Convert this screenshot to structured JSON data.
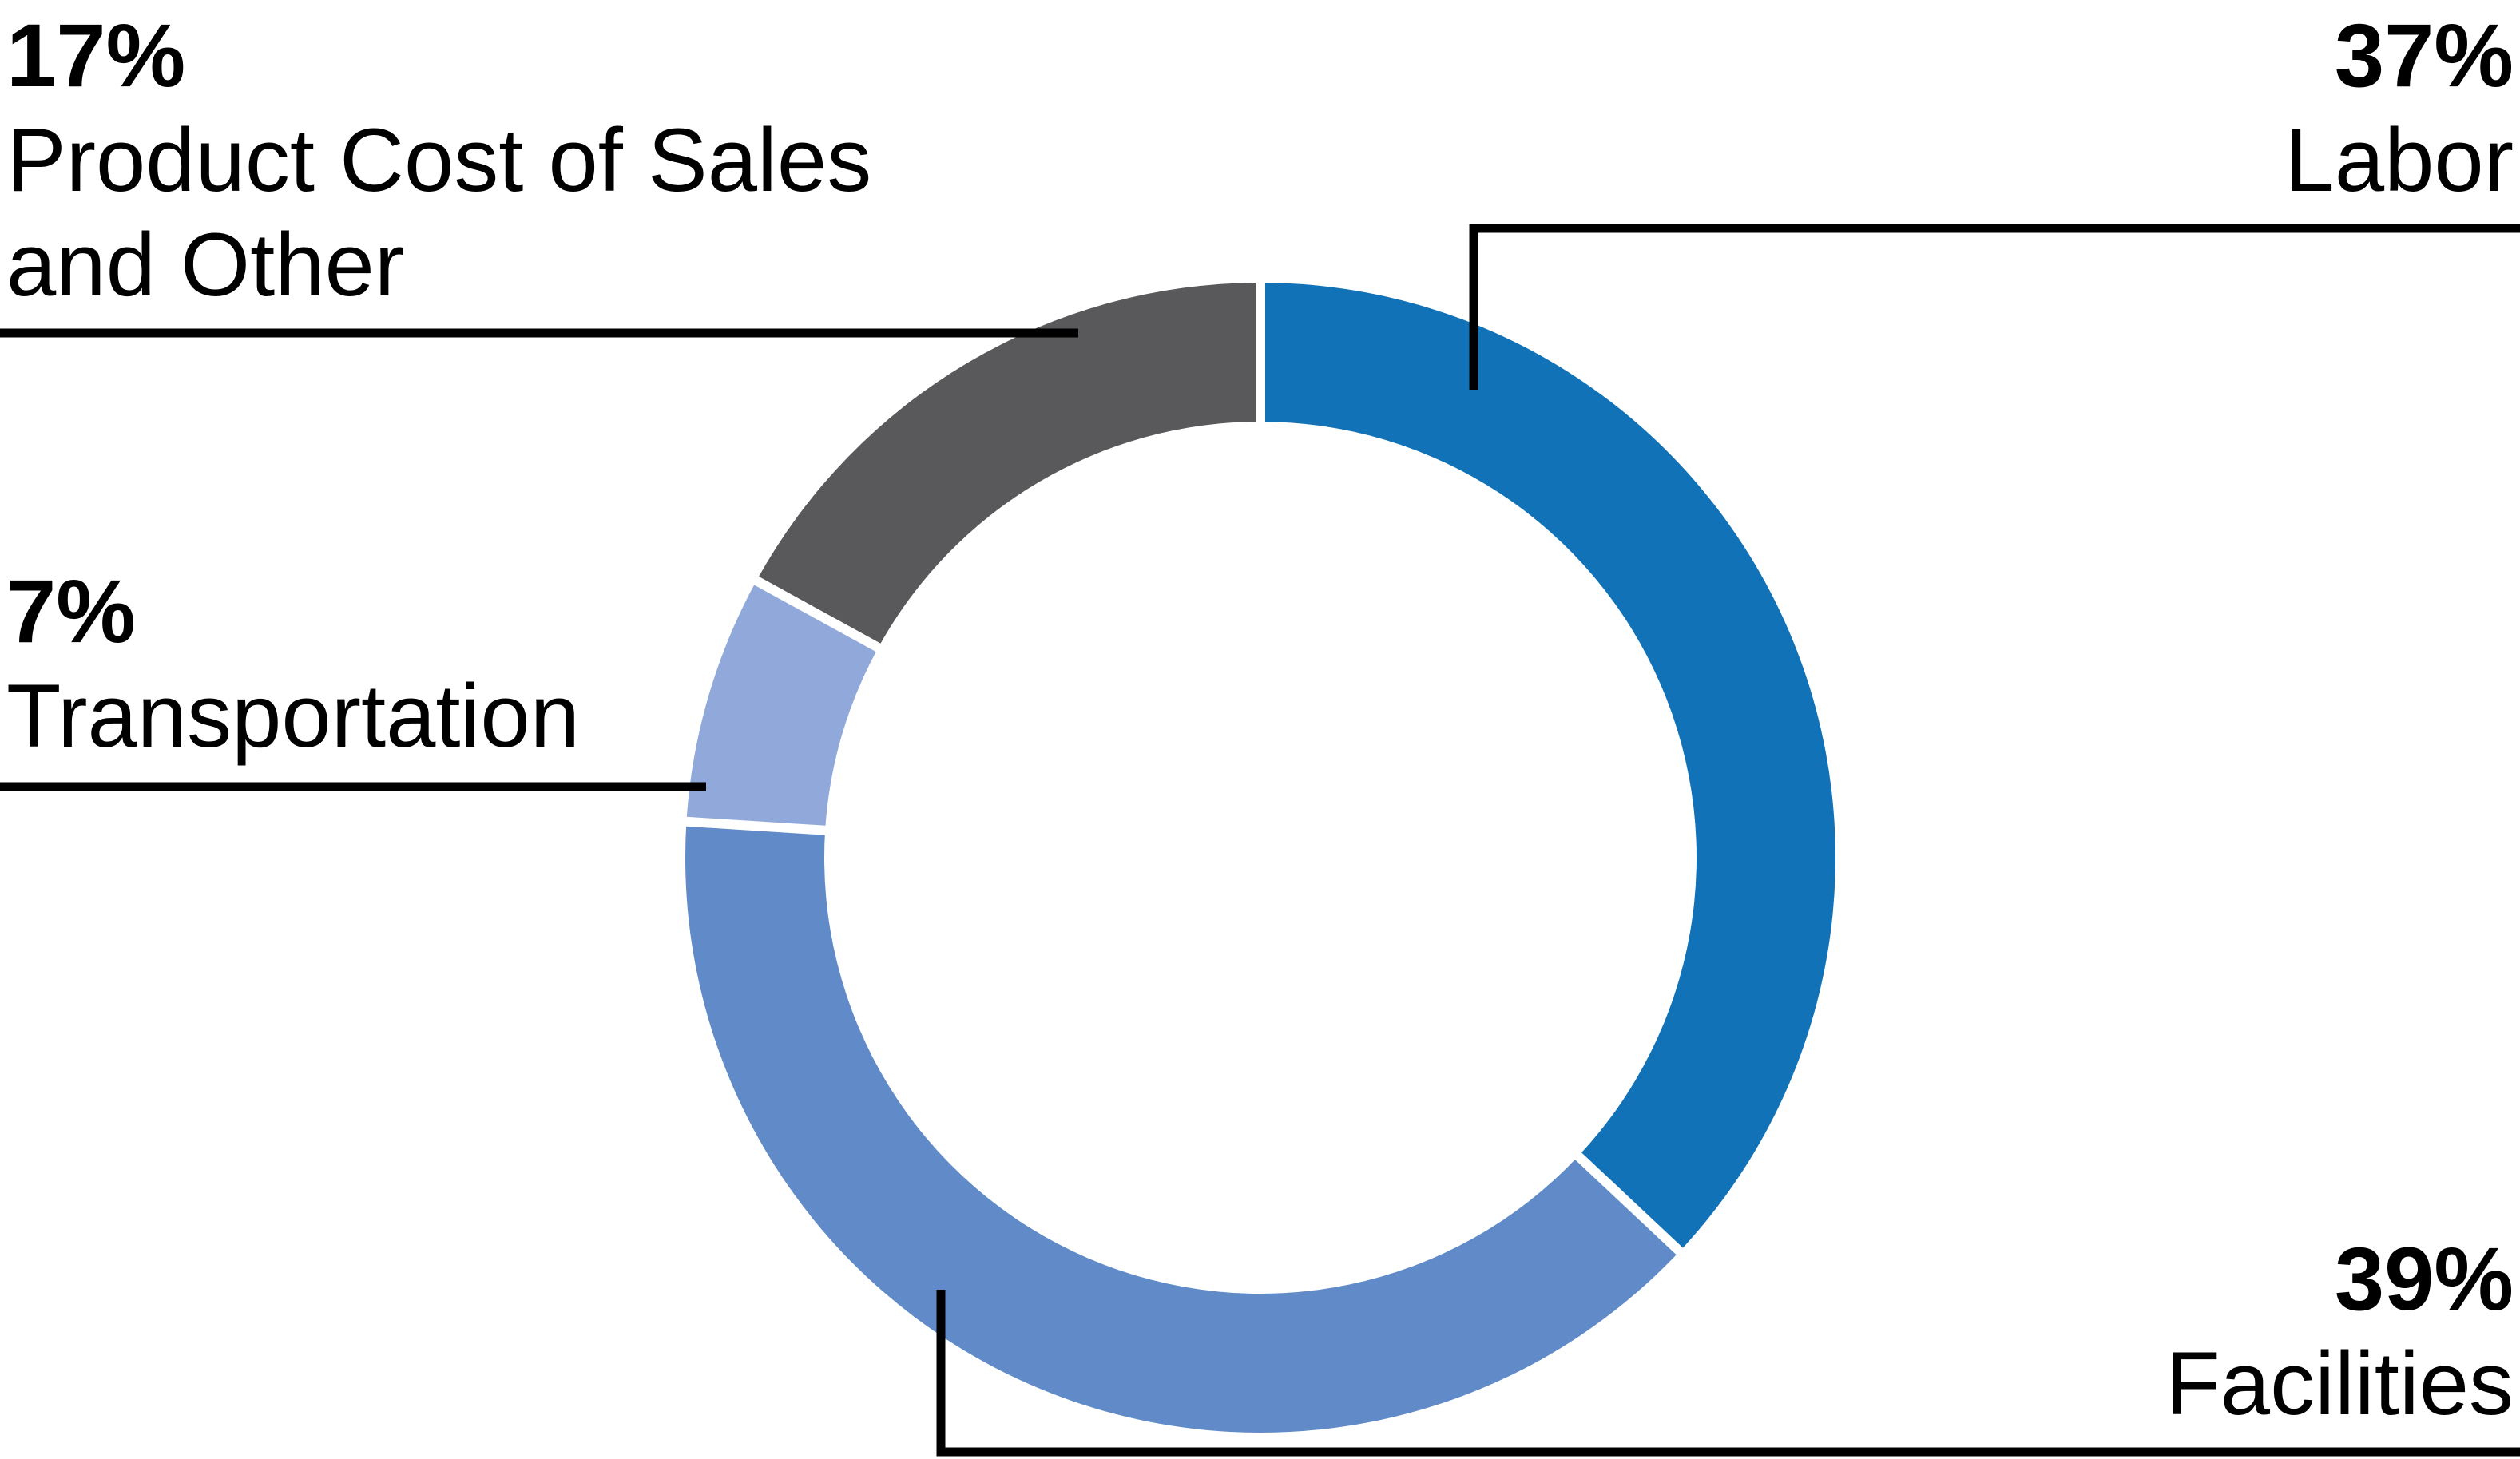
{
  "chart_data": {
    "type": "pie",
    "subtype": "donut",
    "title": "",
    "unit": "%",
    "direction": "clockwise",
    "start_angle_deg": 0,
    "inner_radius_ratio": 0.76,
    "background_color": "#FFFFFF",
    "separator_color": "#FFFFFF",
    "leader_line_color": "#000000",
    "text_color": "#000000",
    "slices": [
      {
        "id": "labor",
        "label": "Labor",
        "value": 37,
        "color": "#1172B8"
      },
      {
        "id": "facilities",
        "label": "Facilities",
        "value": 39,
        "color": "#608BC8"
      },
      {
        "id": "transportation",
        "label": "Transportation",
        "value": 7,
        "color": "#90A9DA"
      },
      {
        "id": "product_cost",
        "label": "Product Cost of Sales and Other",
        "value": 17,
        "color": "#59595B"
      }
    ],
    "callouts": [
      {
        "id": "labor",
        "pct": "37%",
        "lines": [
          "Labor"
        ],
        "align": "right"
      },
      {
        "id": "facilities",
        "pct": "39%",
        "lines": [
          "Facilities"
        ],
        "align": "right"
      },
      {
        "id": "transportation",
        "pct": "7%",
        "lines": [
          "Transportation"
        ],
        "align": "left"
      },
      {
        "id": "product_cost",
        "pct": "17%",
        "lines": [
          "Product Cost of Sales",
          "and Other"
        ],
        "align": "left"
      }
    ]
  }
}
